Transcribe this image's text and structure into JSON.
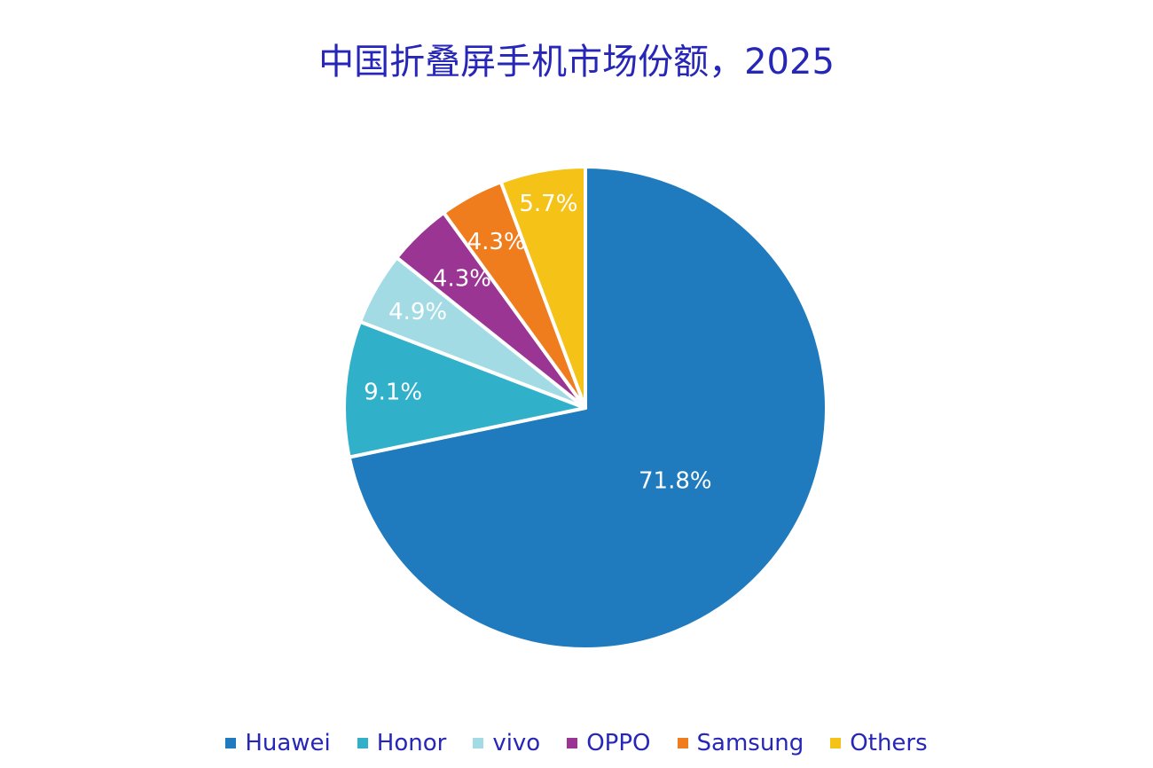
{
  "chart_data": {
    "type": "pie",
    "title": "中国折叠屏手机市场份额，2025",
    "categories": [
      "Huawei",
      "Honor",
      "vivo",
      "OPPO",
      "Samsung",
      "Others"
    ],
    "values": [
      71.8,
      9.1,
      4.9,
      4.3,
      4.3,
      5.7
    ],
    "value_labels": [
      "71.8%",
      "9.1%",
      "4.9%",
      "4.3%",
      "4.3%",
      "5.7%"
    ],
    "colors": [
      "#1f7bbd",
      "#31b0c9",
      "#a3dbe5",
      "#9b3593",
      "#f07d1d",
      "#f5c218"
    ],
    "start": "12 o'clock",
    "direction": "clockwise",
    "legend": "bottom",
    "label_color": "#ffffff",
    "title_color": "#2626b8"
  }
}
